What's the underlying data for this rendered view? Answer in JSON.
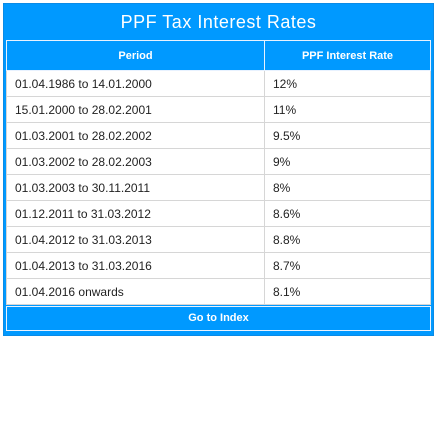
{
  "title": "PPF Tax Interest Rates",
  "table": {
    "headers": [
      "Period",
      "PPF Interest Rate"
    ],
    "rows": [
      {
        "period": "01.04.1986 to 14.01.2000",
        "rate": "12%"
      },
      {
        "period": "15.01.2000 to 28.02.2001",
        "rate": "11%"
      },
      {
        "period": "01.03.2001 to 28.02.2002",
        "rate": "9.5%"
      },
      {
        "period": "01.03.2002 to 28.02.2003",
        "rate": "9%"
      },
      {
        "period": "01.03.2003 to 30.11.2011",
        "rate": "8%"
      },
      {
        "period": "01.12.2011 to 31.03.2012",
        "rate": "8.6%"
      },
      {
        "period": "01.04.2012 to 31.03.2013",
        "rate": "8.8%"
      },
      {
        "period": "01.04.2013 to 31.03.2016",
        "rate": "8.7%"
      },
      {
        "period": "01.04.2016 onwards",
        "rate": "8.1%"
      }
    ]
  },
  "footer": {
    "link_label": "Go to Index"
  },
  "colors": {
    "accent": "#0099ff",
    "text": "#222222",
    "border": "#d6d6d6"
  }
}
